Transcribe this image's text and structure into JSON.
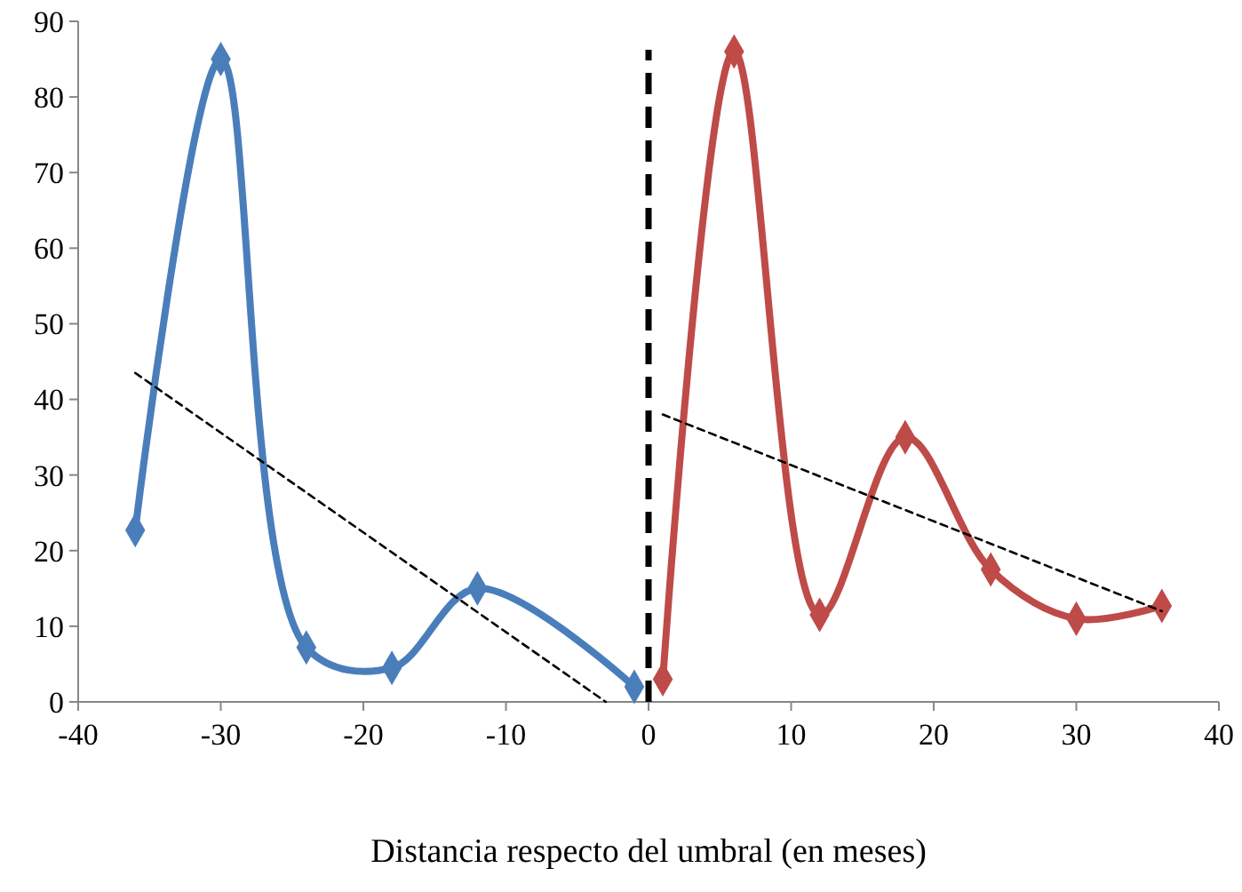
{
  "chart_data": {
    "type": "line",
    "xlabel": "Distancia respecto del umbral (en meses)",
    "xlim": [
      -40,
      40
    ],
    "xticks": [
      -40,
      -30,
      -20,
      -10,
      0,
      10,
      20,
      30,
      40
    ],
    "ylim": [
      0,
      90
    ],
    "yticks": [
      0,
      10,
      20,
      30,
      40,
      50,
      60,
      70,
      80,
      90
    ],
    "grid": false,
    "marker": "diamond",
    "line_style": "solid",
    "series": [
      {
        "color": "#4a7ebb",
        "x": [
          -36,
          -30,
          -24,
          -18,
          -12,
          -1
        ],
        "values": [
          22.7,
          85,
          7.2,
          4.5,
          15,
          2
        ]
      },
      {
        "color": "#be4b48",
        "x": [
          1,
          6,
          12,
          18,
          24,
          30,
          36
        ],
        "values": [
          3,
          86,
          11.5,
          35,
          17.5,
          11,
          12.7
        ]
      },
      {
        "color": "#000000",
        "marker": "none",
        "line_style": "dashed",
        "x": [
          -36,
          -3
        ],
        "values": [
          43.5,
          0
        ]
      },
      {
        "color": "#000000",
        "marker": "none",
        "line_style": "dashed",
        "x": [
          1,
          36
        ],
        "values": [
          38,
          12
        ]
      }
    ],
    "ref_lines": [
      {
        "axis": "x",
        "value": 0,
        "color": "#000000",
        "line_style": "dashed"
      }
    ]
  }
}
